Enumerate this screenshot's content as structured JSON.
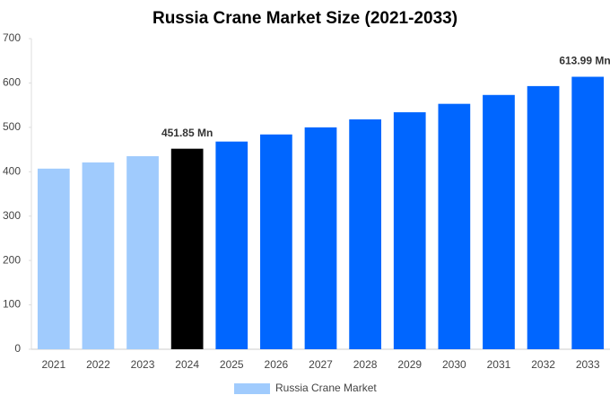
{
  "chart_data": {
    "type": "bar",
    "title": "Russia Crane Market Size (2021-2033)",
    "categories": [
      "2021",
      "2022",
      "2023",
      "2024",
      "2025",
      "2026",
      "2027",
      "2028",
      "2029",
      "2030",
      "2031",
      "2032",
      "2033"
    ],
    "series": [
      {
        "name": "Russia Crane Market",
        "color": "#a0cbfd",
        "colors": [
          "#a0cbfd",
          "#a0cbfd",
          "#a0cbfd",
          "#000000",
          "#0066ff",
          "#0066ff",
          "#0066ff",
          "#0066ff",
          "#0066ff",
          "#0066ff",
          "#0066ff",
          "#0066ff",
          "#0066ff"
        ],
        "values": [
          407,
          421,
          435,
          451.85,
          468,
          484,
          500,
          518,
          534,
          553,
          573,
          593,
          613.99
        ],
        "value_labels": [
          null,
          null,
          null,
          "451.85 Mn",
          null,
          null,
          null,
          null,
          null,
          null,
          null,
          null,
          "613.99 Mn"
        ]
      }
    ],
    "ylim": [
      0,
      700
    ],
    "yticks": [
      0,
      100,
      200,
      300,
      400,
      500,
      600,
      700
    ],
    "grid": false
  }
}
